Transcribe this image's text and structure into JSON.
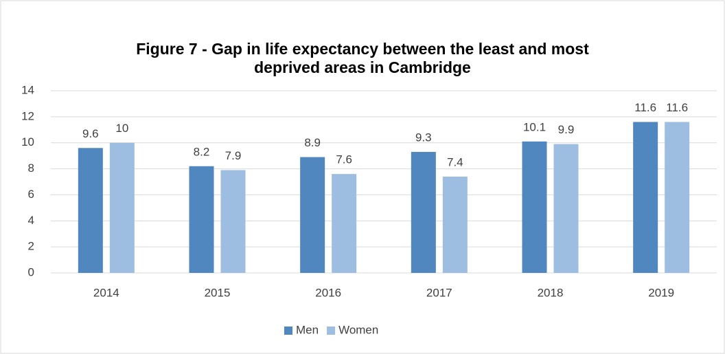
{
  "chart_data": {
    "type": "bar",
    "title": "Figure 7 - Gap in life expectancy between the least and most deprived areas in Cambridge",
    "categories": [
      "2014",
      "2015",
      "2016",
      "2017",
      "2018",
      "2019"
    ],
    "series": [
      {
        "name": "Men",
        "color": "#4f87be",
        "values": [
          9.6,
          8.2,
          8.9,
          9.3,
          10.1,
          11.6
        ]
      },
      {
        "name": "Women",
        "color": "#9dbde1",
        "values": [
          10,
          7.9,
          7.6,
          7.4,
          9.9,
          11.6
        ]
      }
    ],
    "ylim": [
      0,
      14
    ],
    "yticks": [
      0,
      2,
      4,
      6,
      8,
      10,
      12,
      14
    ],
    "grid": true,
    "legend": "bottom"
  }
}
